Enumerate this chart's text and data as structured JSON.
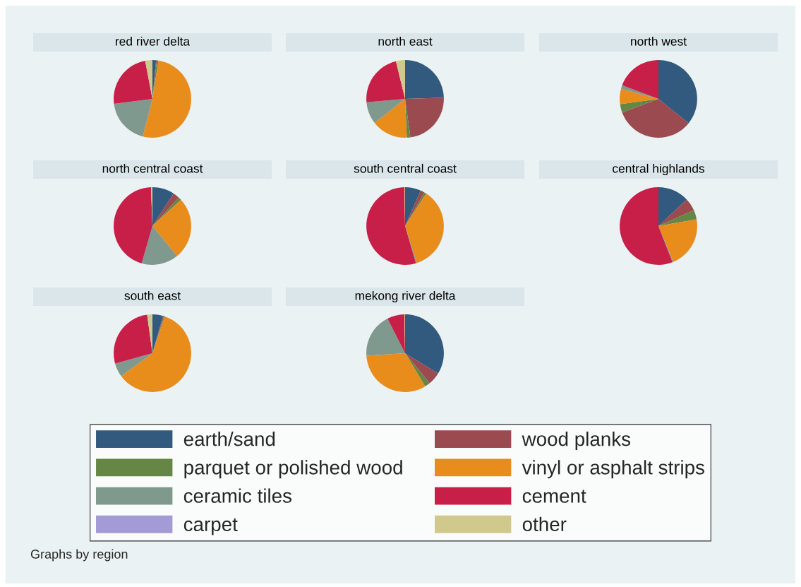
{
  "chart_data": [
    {
      "type": "pie",
      "title": "red river delta",
      "legend": "bottom",
      "annotations": [
        "Graphs by region"
      ],
      "categories": [
        "earth/sand",
        "wood planks",
        "parquet or polished wood",
        "vinyl or asphalt strips",
        "ceramic tiles",
        "carpet",
        "cement",
        "other"
      ],
      "colors": [
        "#315a7e",
        "#9b4a50",
        "#668645",
        "#e88c1b",
        "#7f998e",
        "#a49ad6",
        "#c81f48",
        "#d0c98e"
      ],
      "values": [
        1.5,
        0.3,
        0.7,
        51.5,
        19,
        0,
        24,
        3
      ]
    },
    {
      "type": "pie",
      "title": "north east",
      "colors": [
        "#315a7e",
        "#9b4a50",
        "#668645",
        "#e88c1b",
        "#7f998e",
        "#a49ad6",
        "#c81f48",
        "#d0c98e"
      ],
      "values": [
        24.5,
        23.3,
        1.5,
        15.1,
        9.2,
        0,
        22.6,
        3.8
      ]
    },
    {
      "type": "pie",
      "title": "north west",
      "colors": [
        "#315a7e",
        "#9b4a50",
        "#668645",
        "#e88c1b",
        "#7f998e",
        "#a49ad6",
        "#c81f48",
        "#d0c98e"
      ],
      "values": [
        35.8,
        33.5,
        3.5,
        6.4,
        1.5,
        0,
        19.3,
        0
      ]
    },
    {
      "type": "pie",
      "title": "north central coast",
      "colors": [
        "#315a7e",
        "#9b4a50",
        "#668645",
        "#e88c1b",
        "#7f998e",
        "#a49ad6",
        "#c81f48",
        "#d0c98e"
      ],
      "values": [
        9.2,
        2.7,
        1.3,
        25.9,
        15.4,
        0,
        44.9,
        0.6
      ]
    },
    {
      "type": "pie",
      "title": "south central coast",
      "colors": [
        "#315a7e",
        "#9b4a50",
        "#668645",
        "#e88c1b",
        "#7f998e",
        "#a49ad6",
        "#c81f48",
        "#d0c98e"
      ],
      "values": [
        6.6,
        1.7,
        0.9,
        35.9,
        0.4,
        0,
        54.2,
        0.3
      ]
    },
    {
      "type": "pie",
      "title": "central highlands",
      "colors": [
        "#315a7e",
        "#9b4a50",
        "#668645",
        "#e88c1b",
        "#7f998e",
        "#a49ad6",
        "#c81f48",
        "#d0c98e"
      ],
      "values": [
        13,
        5.3,
        3.9,
        21.5,
        0.4,
        0,
        55.9,
        0
      ]
    },
    {
      "type": "pie",
      "title": "south east",
      "colors": [
        "#315a7e",
        "#9b4a50",
        "#668645",
        "#e88c1b",
        "#7f998e",
        "#a49ad6",
        "#c81f48",
        "#d0c98e"
      ],
      "values": [
        4.4,
        0.4,
        0.4,
        59.7,
        5.8,
        0,
        27.1,
        2.2
      ]
    },
    {
      "type": "pie",
      "title": "mekong river delta",
      "colors": [
        "#315a7e",
        "#9b4a50",
        "#668645",
        "#e88c1b",
        "#7f998e",
        "#a49ad6",
        "#c81f48",
        "#d0c98e"
      ],
      "values": [
        33.8,
        5.3,
        2.2,
        32.7,
        18.5,
        0,
        7.2,
        0.3
      ]
    }
  ]
}
